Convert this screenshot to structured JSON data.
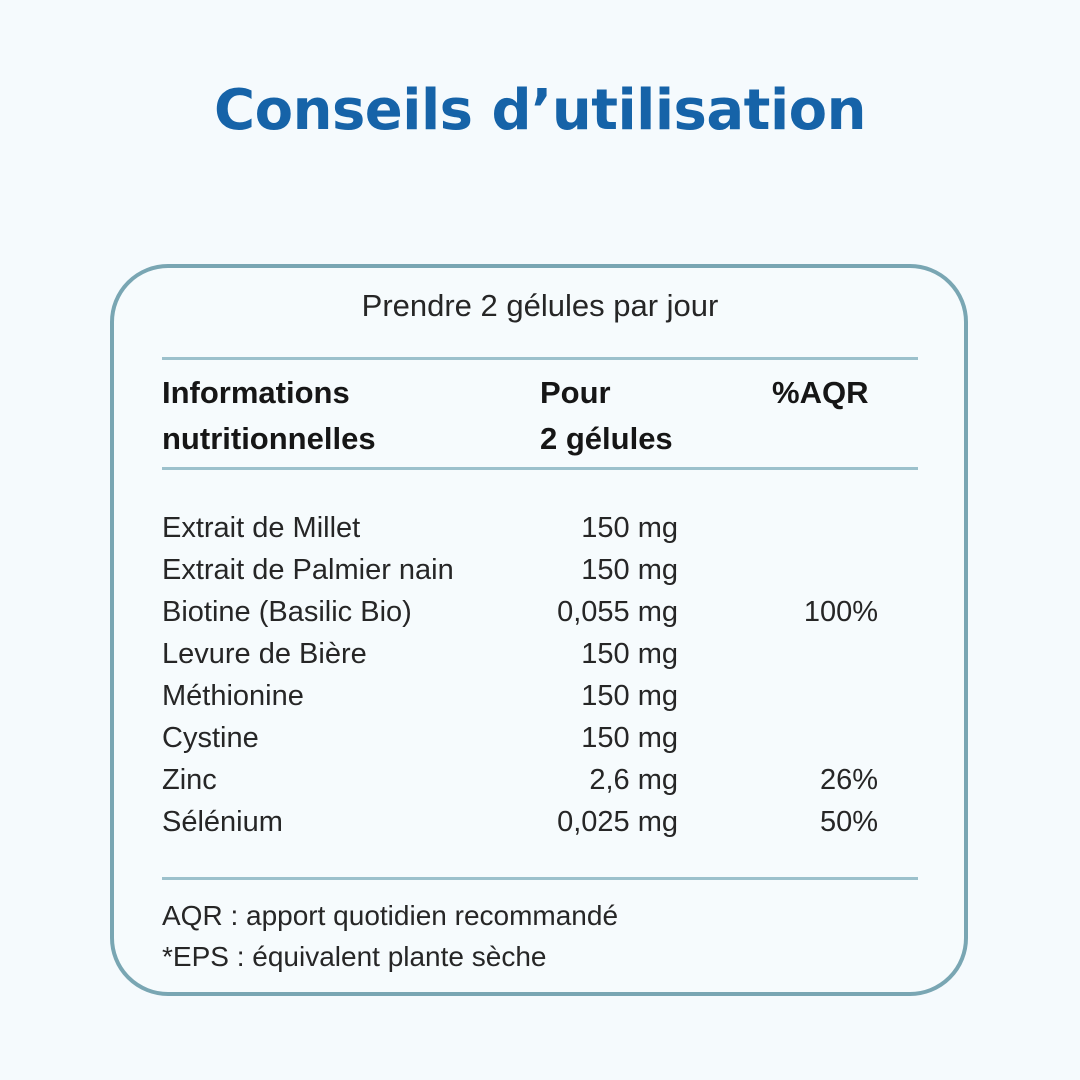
{
  "title": "Conseils d’utilisation",
  "dosage": "Prendre 2 gélules par jour",
  "table": {
    "headers": {
      "col1_line1": "Informations",
      "col1_line2": "nutritionnelles",
      "col2_line1": "Pour",
      "col2_line2": "2 gélules",
      "col3": "%AQR"
    },
    "rows": [
      {
        "name": "Extrait de Millet",
        "amount": "150 mg",
        "aqr": ""
      },
      {
        "name": "Extrait de Palmier nain",
        "amount": "150 mg",
        "aqr": ""
      },
      {
        "name": "Biotine (Basilic Bio)",
        "amount": "0,055 mg",
        "aqr": "100%"
      },
      {
        "name": "Levure de Bière",
        "amount": "150 mg",
        "aqr": ""
      },
      {
        "name": "Méthionine",
        "amount": "150 mg",
        "aqr": ""
      },
      {
        "name": "Cystine",
        "amount": "150 mg",
        "aqr": ""
      },
      {
        "name": "Zinc",
        "amount": "2,6 mg",
        "aqr": "26%"
      },
      {
        "name": "Sélénium",
        "amount": "0,025 mg",
        "aqr": "50%"
      }
    ]
  },
  "footnotes": {
    "aqr": "AQR : apport quotidien recommandé",
    "eps": "*EPS : équivalent plante sèche"
  },
  "colors": {
    "title": "#1663a8",
    "card_border": "#79a6b3",
    "rule": "#9cc1cc",
    "background": "#f5fafd"
  }
}
